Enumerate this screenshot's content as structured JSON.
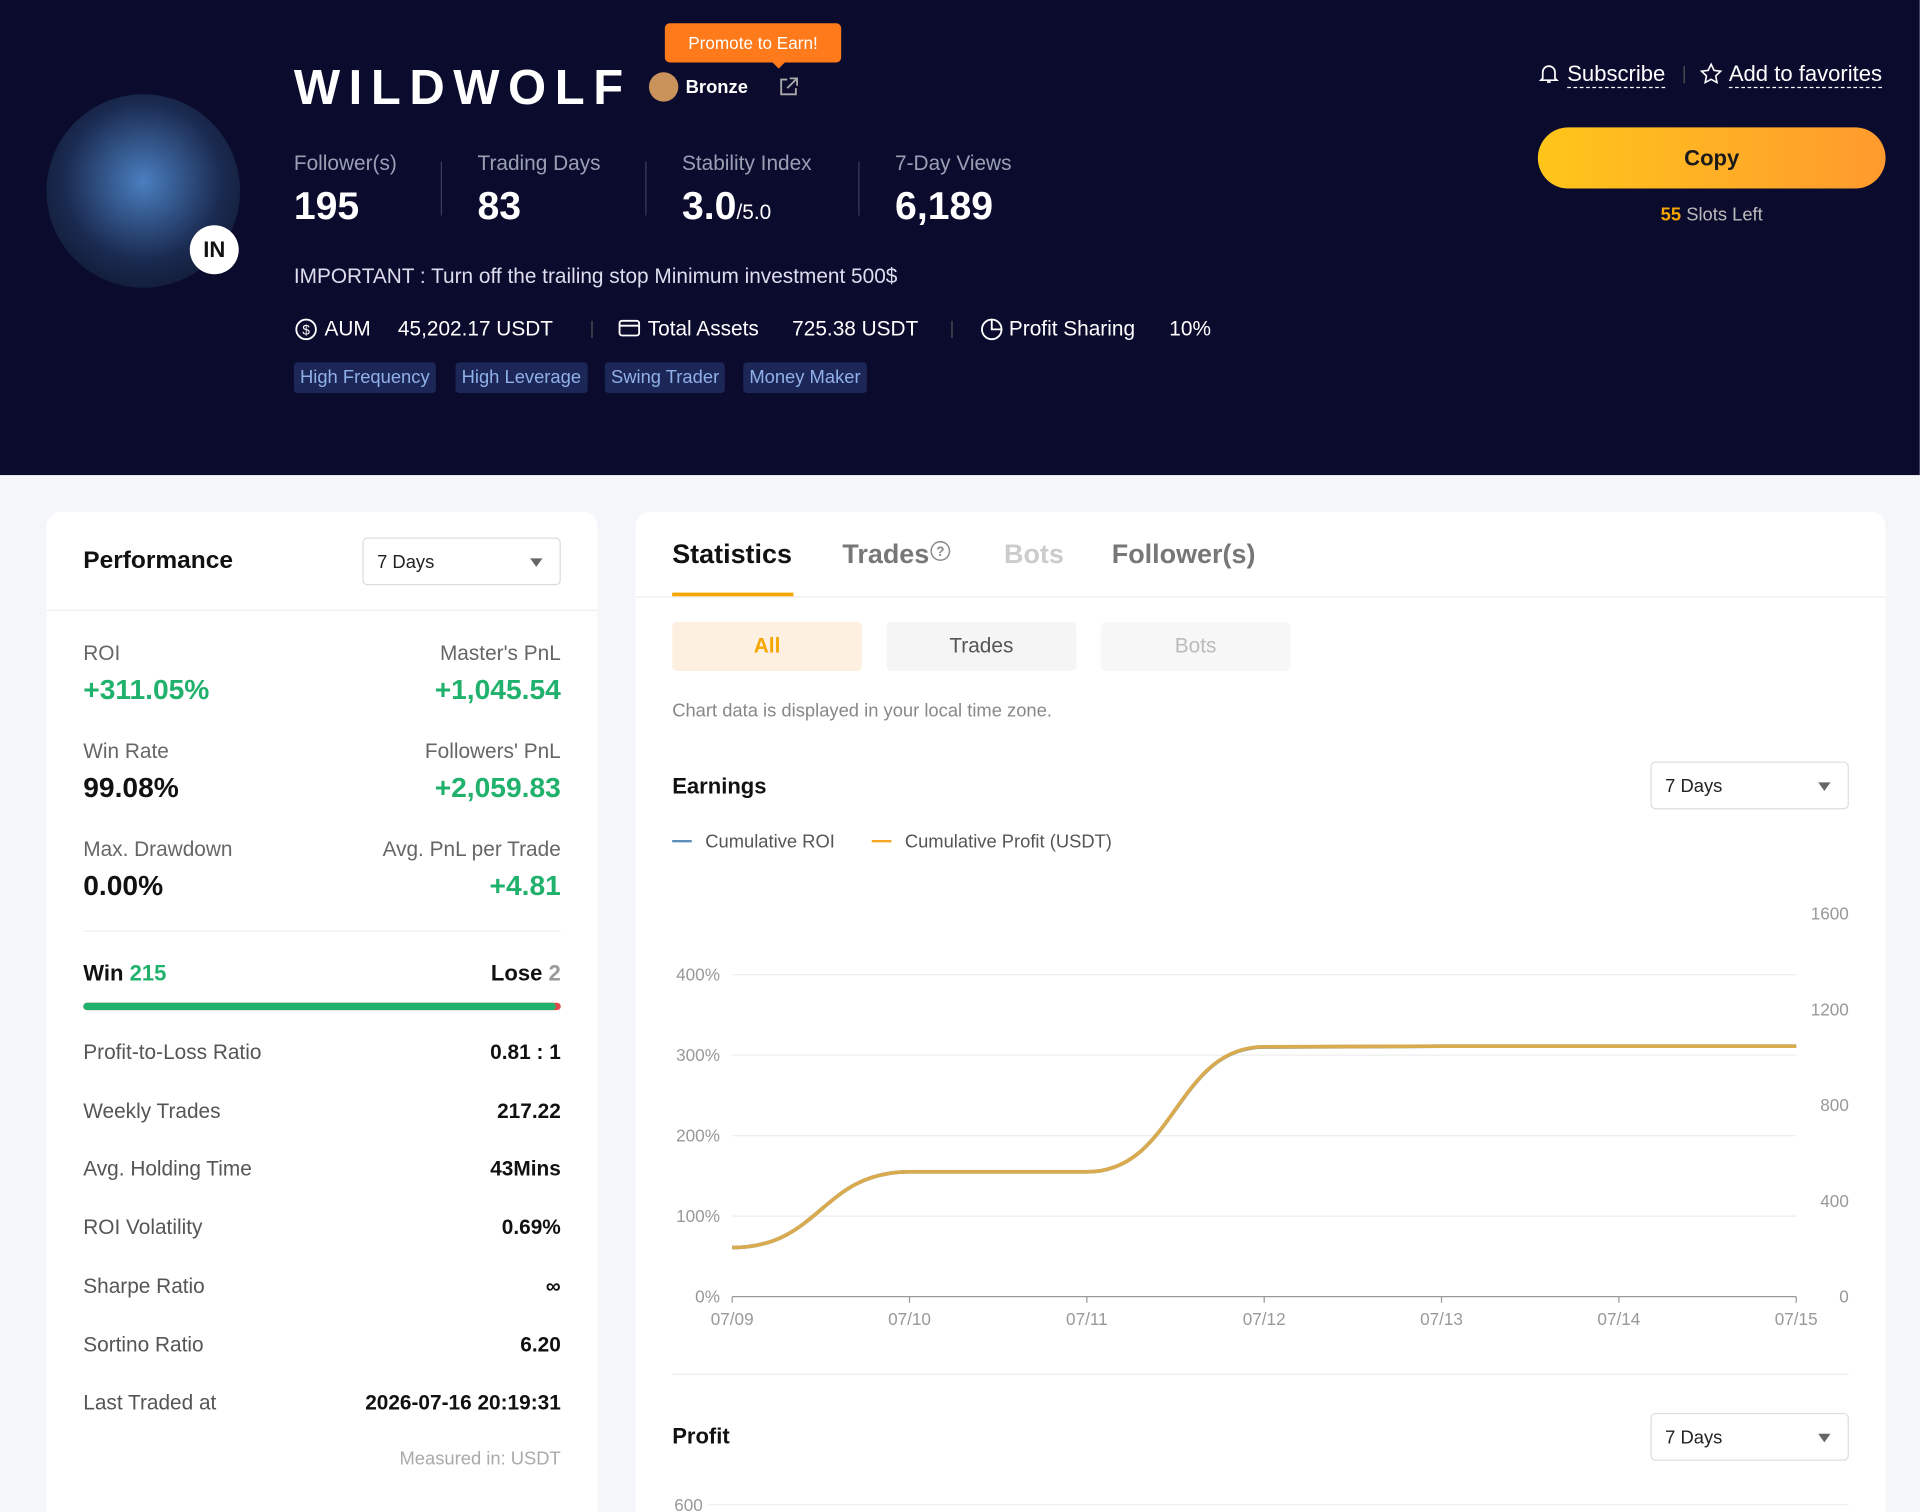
{
  "header": {
    "promo": "Promote to Earn!",
    "name": "WILDWOLF",
    "badge": "Bronze",
    "avatar_label": "IN",
    "subscribe": "Subscribe",
    "favorites": "Add to favorites",
    "copy": "Copy",
    "slots": 55,
    "slots_label": "Slots Left",
    "stats": [
      {
        "label": "Follower(s)",
        "value": 195
      },
      {
        "label": "Trading Days",
        "value": 83
      },
      {
        "label": "Stability Index",
        "value": "3.0",
        "suffix": "/5.0"
      },
      {
        "label": "7-Day Views",
        "value": "6,189"
      }
    ],
    "description": "IMPORTANT : Turn off the trailing stop Minimum investment 500$",
    "metrics": [
      {
        "label": "AUM",
        "value": "45,202.17 USDT"
      },
      {
        "label": "Total Assets",
        "value": "725.38 USDT"
      },
      {
        "label": "Profit Sharing",
        "value": "10%"
      }
    ],
    "tags": [
      "High Frequency",
      "High Leverage",
      "Swing Trader",
      "Money Maker"
    ]
  },
  "performance": {
    "title": "Performance",
    "period": "7 Days",
    "kpis": [
      {
        "label": "ROI",
        "value": "+311.05%"
      },
      {
        "label": "Master's PnL",
        "value": "+1,045.54"
      },
      {
        "label": "Win Rate",
        "value": "99.08%"
      },
      {
        "label": "Followers' PnL",
        "value": "+2,059.83"
      },
      {
        "label": "Max. Drawdown",
        "value": "0.00%"
      },
      {
        "label": "Avg. PnL per Trade",
        "value": "+4.81"
      }
    ],
    "win_label": "Win",
    "win": 215,
    "lose_label": "Lose",
    "lose": 2,
    "rows": [
      [
        "Profit-to-Loss Ratio",
        "0.81 : 1"
      ],
      [
        "Weekly Trades",
        "217.22"
      ],
      [
        "Avg. Holding Time",
        "43Mins"
      ],
      [
        "ROI Volatility",
        "0.69%"
      ],
      [
        "Sharpe Ratio",
        "∞"
      ],
      [
        "Sortino Ratio",
        "6.20"
      ],
      [
        "Last Traded at",
        "2026-07-16 20:19:31"
      ]
    ],
    "footnote": "Measured in: USDT"
  },
  "tabs": [
    "Statistics",
    "Trades",
    "Bots",
    "Follower(s)"
  ],
  "subtabs": [
    "All",
    "Trades",
    "Bots"
  ],
  "note": "Chart data is displayed in your local time zone.",
  "earnings": {
    "title": "Earnings",
    "period": "7 Days"
  },
  "chart_data": {
    "type": "line",
    "categories": [
      "07/09",
      "07/10",
      "07/11",
      "07/12",
      "07/13",
      "07/14",
      "07/15"
    ],
    "series": [
      {
        "name": "Cumulative ROI",
        "color": "#5b8fb9",
        "values": [
          61,
          155,
          155,
          310,
          311.05,
          311.05,
          311.05
        ]
      },
      {
        "name": "Cumulative Profit (USDT)",
        "color": "#f5a623",
        "axis": "y2",
        "values": [
          205,
          521,
          521,
          1043,
          1045.54,
          1045.54,
          1045.54
        ]
      }
    ],
    "line_color": "#d9aa4e",
    "ylim": [
      0,
      476
    ],
    "yticks": [
      {
        "value": 0,
        "label": "0%"
      },
      {
        "value": 100,
        "label": "100%"
      },
      {
        "value": 200,
        "label": "200%"
      },
      {
        "value": 300,
        "label": "300%"
      },
      {
        "value": 400,
        "label": "400%"
      }
    ],
    "y2lim": [
      0,
      1600
    ],
    "y2ticks": [
      0,
      400,
      800,
      1200,
      1600
    ],
    "grid": true
  },
  "profit": {
    "title": "Profit",
    "period": "7 Days",
    "yticks": [
      600
    ]
  }
}
